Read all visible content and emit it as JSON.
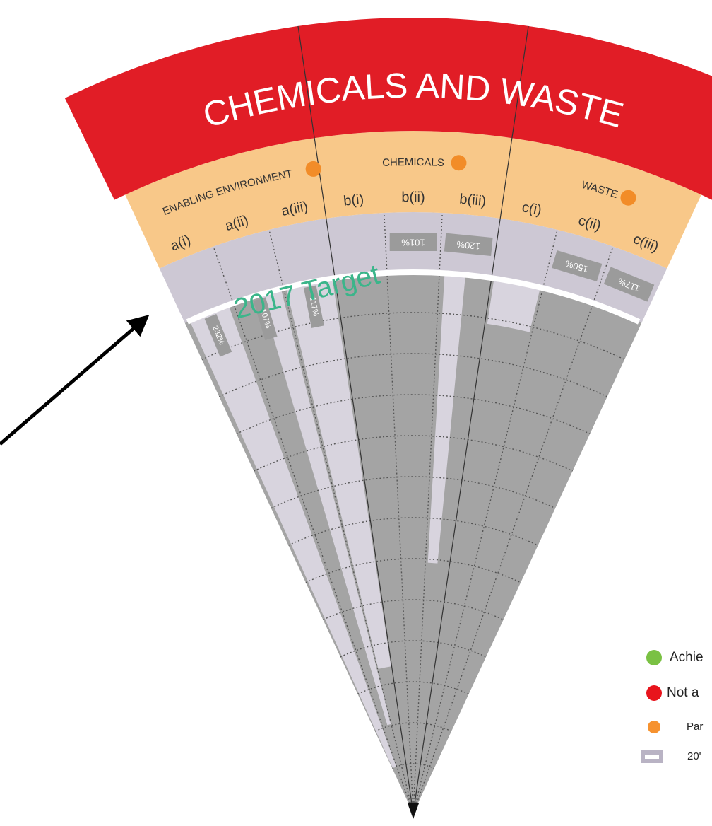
{
  "header": {
    "title": "CHEMICALS AND WASTE"
  },
  "groups": [
    {
      "label": "ENABLING ENVIRONMENT",
      "indicators": [
        {
          "label": "a(i)",
          "value_label": "232%"
        },
        {
          "label": "a(ii)",
          "value_label": "107%"
        },
        {
          "label": "a(iii)",
          "value_label": "117%"
        }
      ]
    },
    {
      "label": "CHEMICALS",
      "indicators": [
        {
          "label": "b(i)"
        },
        {
          "label": "b(ii)",
          "value_label": "101%"
        },
        {
          "label": "b(iii)",
          "value_label": "120%"
        }
      ]
    },
    {
      "label": "WASTE",
      "indicators": [
        {
          "label": "c(i)"
        },
        {
          "label": "c(ii)",
          "value_label": "150%"
        },
        {
          "label": "c(iii)",
          "value_label": "117%"
        }
      ]
    }
  ],
  "target_label": "2017 Target",
  "legend": [
    {
      "label": "Achie"
    },
    {
      "label": "Not a"
    },
    {
      "label": "Par"
    },
    {
      "label": "20'"
    }
  ]
}
